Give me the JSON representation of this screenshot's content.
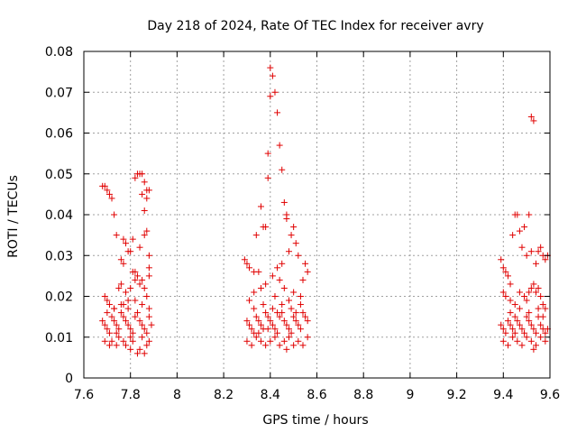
{
  "chart_data": {
    "type": "scatter",
    "title": "Day 218 of 2024, Rate Of TEC Index for receiver avry",
    "xlabel": "GPS time / hours",
    "ylabel": "ROTI / TECUs",
    "xlim": [
      7.6,
      9.6
    ],
    "ylim": [
      0,
      0.08
    ],
    "xticks": [
      "7.6",
      "7.8",
      "8",
      "8.2",
      "8.4",
      "8.6",
      "8.8",
      "9",
      "9.2",
      "9.4",
      "9.6"
    ],
    "yticks": [
      "0",
      "0.01",
      "0.02",
      "0.03",
      "0.04",
      "0.05",
      "0.06",
      "0.07",
      "0.08"
    ],
    "grid": true,
    "marker": "+",
    "color": "#e00000",
    "series": [
      {
        "name": "ROTI",
        "points": [
          [
            7.68,
            0.047
          ],
          [
            7.69,
            0.047
          ],
          [
            7.7,
            0.046
          ],
          [
            7.71,
            0.045
          ],
          [
            7.72,
            0.044
          ],
          [
            7.73,
            0.04
          ],
          [
            7.74,
            0.035
          ],
          [
            7.77,
            0.034
          ],
          [
            7.78,
            0.033
          ],
          [
            7.8,
            0.031
          ],
          [
            7.76,
            0.029
          ],
          [
            7.77,
            0.028
          ],
          [
            7.82,
            0.049
          ],
          [
            7.83,
            0.05
          ],
          [
            7.84,
            0.05
          ],
          [
            7.85,
            0.05
          ],
          [
            7.86,
            0.048
          ],
          [
            7.87,
            0.046
          ],
          [
            7.85,
            0.045
          ],
          [
            7.88,
            0.046
          ],
          [
            7.87,
            0.044
          ],
          [
            7.86,
            0.041
          ],
          [
            7.87,
            0.036
          ],
          [
            7.86,
            0.035
          ],
          [
            7.81,
            0.034
          ],
          [
            7.84,
            0.032
          ],
          [
            7.79,
            0.031
          ],
          [
            7.88,
            0.03
          ],
          [
            7.82,
            0.026
          ],
          [
            7.88,
            0.027
          ],
          [
            7.69,
            0.02
          ],
          [
            7.7,
            0.019
          ],
          [
            7.71,
            0.018
          ],
          [
            7.73,
            0.017
          ],
          [
            7.75,
            0.022
          ],
          [
            7.76,
            0.023
          ],
          [
            7.78,
            0.021
          ],
          [
            7.8,
            0.022
          ],
          [
            7.82,
            0.024
          ],
          [
            7.83,
            0.025
          ],
          [
            7.84,
            0.023
          ],
          [
            7.85,
            0.024
          ],
          [
            7.86,
            0.022
          ],
          [
            7.87,
            0.02
          ],
          [
            7.88,
            0.025
          ],
          [
            7.81,
            0.026
          ],
          [
            7.79,
            0.019
          ],
          [
            7.77,
            0.018
          ],
          [
            7.68,
            0.014
          ],
          [
            7.69,
            0.013
          ],
          [
            7.7,
            0.012
          ],
          [
            7.71,
            0.011
          ],
          [
            7.72,
            0.015
          ],
          [
            7.73,
            0.014
          ],
          [
            7.74,
            0.013
          ],
          [
            7.75,
            0.012
          ],
          [
            7.76,
            0.016
          ],
          [
            7.77,
            0.015
          ],
          [
            7.78,
            0.014
          ],
          [
            7.79,
            0.013
          ],
          [
            7.8,
            0.012
          ],
          [
            7.81,
            0.011
          ],
          [
            7.82,
            0.015
          ],
          [
            7.83,
            0.016
          ],
          [
            7.84,
            0.014
          ],
          [
            7.85,
            0.013
          ],
          [
            7.86,
            0.012
          ],
          [
            7.87,
            0.011
          ],
          [
            7.88,
            0.015
          ],
          [
            7.89,
            0.013
          ],
          [
            7.69,
            0.009
          ],
          [
            7.71,
            0.008
          ],
          [
            7.72,
            0.009
          ],
          [
            7.74,
            0.008
          ],
          [
            7.75,
            0.01
          ],
          [
            7.77,
            0.009
          ],
          [
            7.78,
            0.008
          ],
          [
            7.8,
            0.007
          ],
          [
            7.81,
            0.009
          ],
          [
            7.83,
            0.006
          ],
          [
            7.84,
            0.007
          ],
          [
            7.86,
            0.006
          ],
          [
            7.87,
            0.008
          ],
          [
            7.88,
            0.009
          ],
          [
            7.7,
            0.016
          ],
          [
            7.73,
            0.017
          ],
          [
            7.76,
            0.018
          ],
          [
            7.79,
            0.017
          ],
          [
            7.82,
            0.019
          ],
          [
            7.85,
            0.018
          ],
          [
            7.88,
            0.017
          ],
          [
            7.74,
            0.011
          ],
          [
            7.8,
            0.01
          ],
          [
            7.85,
            0.01
          ],
          [
            8.29,
            0.029
          ],
          [
            8.3,
            0.028
          ],
          [
            8.31,
            0.027
          ],
          [
            8.33,
            0.026
          ],
          [
            8.34,
            0.035
          ],
          [
            8.35,
            0.026
          ],
          [
            8.36,
            0.042
          ],
          [
            8.37,
            0.037
          ],
          [
            8.38,
            0.037
          ],
          [
            8.39,
            0.049
          ],
          [
            8.39,
            0.055
          ],
          [
            8.4,
            0.069
          ],
          [
            8.4,
            0.076
          ],
          [
            8.41,
            0.074
          ],
          [
            8.42,
            0.07
          ],
          [
            8.43,
            0.065
          ],
          [
            8.44,
            0.057
          ],
          [
            8.45,
            0.051
          ],
          [
            8.46,
            0.043
          ],
          [
            8.47,
            0.04
          ],
          [
            8.47,
            0.039
          ],
          [
            8.49,
            0.035
          ],
          [
            8.5,
            0.037
          ],
          [
            8.51,
            0.033
          ],
          [
            8.52,
            0.03
          ],
          [
            8.48,
            0.031
          ],
          [
            8.45,
            0.028
          ],
          [
            8.43,
            0.027
          ],
          [
            8.41,
            0.025
          ],
          [
            8.38,
            0.023
          ],
          [
            8.36,
            0.022
          ],
          [
            8.33,
            0.021
          ],
          [
            8.31,
            0.019
          ],
          [
            8.55,
            0.028
          ],
          [
            8.56,
            0.026
          ],
          [
            8.54,
            0.024
          ],
          [
            8.44,
            0.024
          ],
          [
            8.46,
            0.022
          ],
          [
            8.5,
            0.021
          ],
          [
            8.53,
            0.02
          ],
          [
            8.48,
            0.019
          ],
          [
            8.42,
            0.02
          ],
          [
            8.3,
            0.014
          ],
          [
            8.31,
            0.013
          ],
          [
            8.32,
            0.012
          ],
          [
            8.33,
            0.011
          ],
          [
            8.34,
            0.015
          ],
          [
            8.35,
            0.014
          ],
          [
            8.36,
            0.013
          ],
          [
            8.37,
            0.012
          ],
          [
            8.38,
            0.016
          ],
          [
            8.39,
            0.015
          ],
          [
            8.4,
            0.014
          ],
          [
            8.41,
            0.013
          ],
          [
            8.42,
            0.012
          ],
          [
            8.43,
            0.011
          ],
          [
            8.44,
            0.015
          ],
          [
            8.45,
            0.016
          ],
          [
            8.46,
            0.014
          ],
          [
            8.47,
            0.013
          ],
          [
            8.48,
            0.012
          ],
          [
            8.49,
            0.011
          ],
          [
            8.5,
            0.015
          ],
          [
            8.51,
            0.014
          ],
          [
            8.52,
            0.013
          ],
          [
            8.53,
            0.012
          ],
          [
            8.54,
            0.016
          ],
          [
            8.55,
            0.015
          ],
          [
            8.56,
            0.014
          ],
          [
            8.3,
            0.009
          ],
          [
            8.32,
            0.008
          ],
          [
            8.34,
            0.01
          ],
          [
            8.36,
            0.009
          ],
          [
            8.38,
            0.008
          ],
          [
            8.4,
            0.009
          ],
          [
            8.42,
            0.01
          ],
          [
            8.44,
            0.008
          ],
          [
            8.46,
            0.009
          ],
          [
            8.48,
            0.01
          ],
          [
            8.5,
            0.008
          ],
          [
            8.52,
            0.009
          ],
          [
            8.54,
            0.008
          ],
          [
            8.56,
            0.01
          ],
          [
            8.33,
            0.017
          ],
          [
            8.37,
            0.018
          ],
          [
            8.41,
            0.017
          ],
          [
            8.45,
            0.018
          ],
          [
            8.49,
            0.017
          ],
          [
            8.53,
            0.018
          ],
          [
            8.35,
            0.011
          ],
          [
            8.47,
            0.007
          ],
          [
            8.51,
            0.016
          ],
          [
            8.39,
            0.012
          ],
          [
            8.43,
            0.016
          ],
          [
            9.39,
            0.029
          ],
          [
            9.4,
            0.027
          ],
          [
            9.41,
            0.026
          ],
          [
            9.42,
            0.025
          ],
          [
            9.43,
            0.023
          ],
          [
            9.44,
            0.035
          ],
          [
            9.45,
            0.04
          ],
          [
            9.46,
            0.04
          ],
          [
            9.47,
            0.036
          ],
          [
            9.48,
            0.032
          ],
          [
            9.49,
            0.037
          ],
          [
            9.5,
            0.03
          ],
          [
            9.51,
            0.04
          ],
          [
            9.52,
            0.064
          ],
          [
            9.53,
            0.063
          ],
          [
            9.52,
            0.031
          ],
          [
            9.54,
            0.028
          ],
          [
            9.55,
            0.031
          ],
          [
            9.56,
            0.032
          ],
          [
            9.57,
            0.03
          ],
          [
            9.58,
            0.029
          ],
          [
            9.59,
            0.03
          ],
          [
            9.4,
            0.021
          ],
          [
            9.41,
            0.02
          ],
          [
            9.43,
            0.019
          ],
          [
            9.45,
            0.018
          ],
          [
            9.47,
            0.021
          ],
          [
            9.49,
            0.02
          ],
          [
            9.5,
            0.019
          ],
          [
            9.51,
            0.021
          ],
          [
            9.52,
            0.022
          ],
          [
            9.53,
            0.023
          ],
          [
            9.54,
            0.021
          ],
          [
            9.55,
            0.022
          ],
          [
            9.56,
            0.02
          ],
          [
            9.57,
            0.018
          ],
          [
            9.58,
            0.017
          ],
          [
            9.39,
            0.013
          ],
          [
            9.4,
            0.012
          ],
          [
            9.41,
            0.011
          ],
          [
            9.42,
            0.014
          ],
          [
            9.43,
            0.013
          ],
          [
            9.44,
            0.012
          ],
          [
            9.45,
            0.015
          ],
          [
            9.46,
            0.014
          ],
          [
            9.47,
            0.013
          ],
          [
            9.48,
            0.012
          ],
          [
            9.49,
            0.011
          ],
          [
            9.5,
            0.015
          ],
          [
            9.51,
            0.014
          ],
          [
            9.52,
            0.013
          ],
          [
            9.53,
            0.012
          ],
          [
            9.54,
            0.011
          ],
          [
            9.55,
            0.015
          ],
          [
            9.56,
            0.013
          ],
          [
            9.57,
            0.012
          ],
          [
            9.58,
            0.011
          ],
          [
            9.59,
            0.012
          ],
          [
            9.4,
            0.009
          ],
          [
            9.42,
            0.008
          ],
          [
            9.44,
            0.01
          ],
          [
            9.46,
            0.009
          ],
          [
            9.48,
            0.008
          ],
          [
            9.5,
            0.01
          ],
          [
            9.52,
            0.009
          ],
          [
            9.54,
            0.008
          ],
          [
            9.56,
            0.01
          ],
          [
            9.58,
            0.009
          ],
          [
            9.43,
            0.016
          ],
          [
            9.47,
            0.017
          ],
          [
            9.51,
            0.016
          ],
          [
            9.55,
            0.017
          ],
          [
            9.45,
            0.011
          ],
          [
            9.53,
            0.007
          ],
          [
            9.57,
            0.015
          ]
        ]
      }
    ]
  }
}
